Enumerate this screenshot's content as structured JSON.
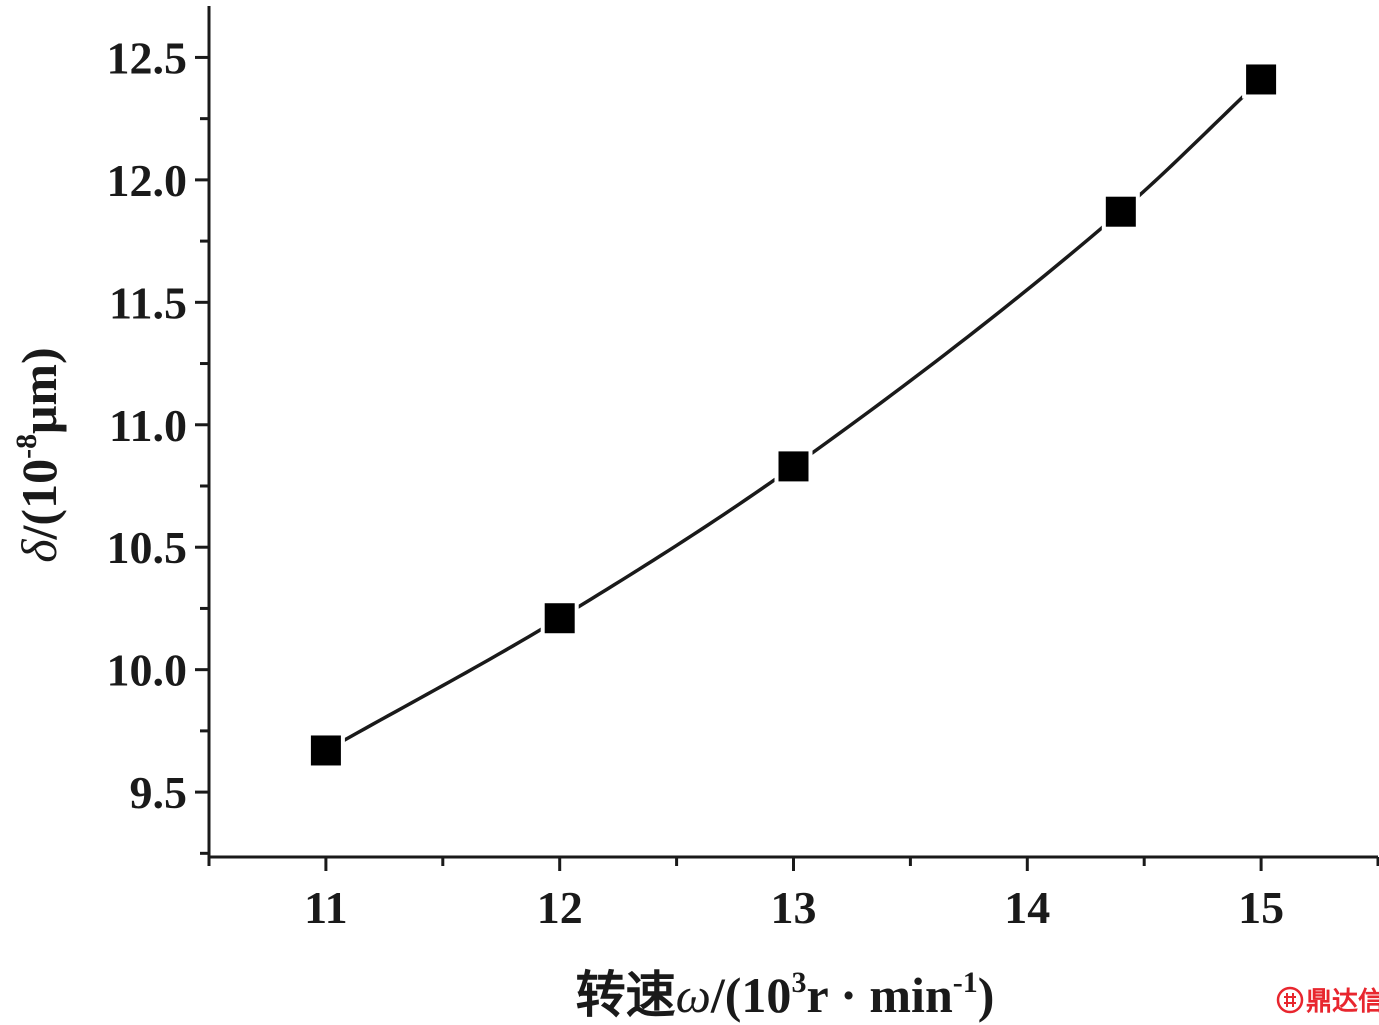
{
  "chart_data": {
    "type": "line",
    "x": [
      11,
      12,
      13,
      14.4,
      15
    ],
    "series": [
      {
        "values": [
          9.67,
          10.21,
          10.83,
          11.87,
          12.41
        ],
        "marker": "square",
        "line": "smooth"
      }
    ],
    "xlim": [
      10.5,
      15.5
    ],
    "ylim": [
      9.235,
      12.71
    ],
    "xticks": [
      11,
      12,
      13,
      14,
      15
    ],
    "xtick_labels": [
      "11",
      "12",
      "13",
      "14",
      "15"
    ],
    "yticks": [
      9.5,
      10.0,
      10.5,
      11.0,
      11.5,
      12.0,
      12.5
    ],
    "ytick_labels": [
      "9.5",
      "10.0",
      "10.5",
      "11.0",
      "11.5",
      "12.0",
      "12.5"
    ],
    "xlabel": {
      "prefix": "转速",
      "symbol": "ω",
      "text_1": "/(10",
      "sup_1": "3",
      "text_2": "r · min",
      "sup_2": "-1",
      "text_3": ")"
    },
    "ylabel": {
      "symbol": "δ",
      "text_1": "/(10",
      "sup_1": "-8",
      "text_2": "μm)"
    },
    "grid": false,
    "legend": "none",
    "colors": {
      "line": "#1a1a1a",
      "marker": "#000000",
      "axis": "#1a1a1a"
    }
  },
  "watermark": {
    "icon": "dingdaxin-logo-icon",
    "text": "鼎达信",
    "color": "#e8262e"
  }
}
